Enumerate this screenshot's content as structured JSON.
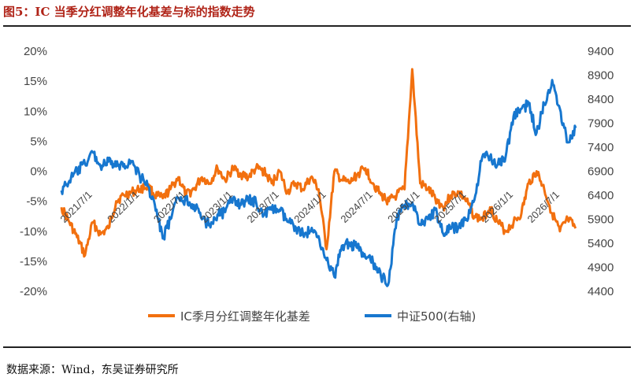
{
  "header": {
    "title": "图5：IC 当季分红调整年化基差与标的指数走势"
  },
  "footer": {
    "source": "数据来源：Wind，东吴证券研究所"
  },
  "colors": {
    "basis": "#f2700f",
    "index": "#1777cf",
    "title": "#b02418"
  },
  "chart_data": {
    "type": "line",
    "title": "",
    "xlabel": "",
    "ylabel": "",
    "y_left": {
      "min": -0.2,
      "max": 0.2,
      "ticks": [
        "20%",
        "15%",
        "10%",
        "5%",
        "0%",
        "-5%",
        "-10%",
        "-15%",
        "-20%"
      ]
    },
    "y_right": {
      "min": 4400,
      "max": 9400,
      "ticks": [
        "9400",
        "8900",
        "8400",
        "7900",
        "7400",
        "6900",
        "6400",
        "5900",
        "5400",
        "4900",
        "4400"
      ]
    },
    "x_ticks": [
      "2021/7/1",
      "2022/1/1",
      "2022/7/1",
      "2023/1/1",
      "2023/7/1",
      "2024/1/1",
      "2024/7/1",
      "2025/1/1",
      "2025/7/1",
      "2026/1/1",
      "2026/7/1"
    ],
    "x_range": [
      "2021/3/1",
      "2026/9/1"
    ],
    "legend_position": "bottom",
    "grid": false,
    "series": [
      {
        "name": "IC季月分红调整年化基差",
        "axis": "left",
        "color": "#f2700f",
        "points": [
          [
            "2021/3/1",
            -0.06
          ],
          [
            "2021/4/1",
            -0.085
          ],
          [
            "2021/5/1",
            -0.11
          ],
          [
            "2021/6/1",
            -0.14
          ],
          [
            "2021/7/1",
            -0.085
          ],
          [
            "2021/8/1",
            -0.105
          ],
          [
            "2021/9/1",
            -0.095
          ],
          [
            "2021/10/1",
            -0.05
          ],
          [
            "2021/11/1",
            -0.04
          ],
          [
            "2021/12/1",
            -0.035
          ],
          [
            "2022/1/1",
            -0.03
          ],
          [
            "2022/2/1",
            -0.025
          ],
          [
            "2022/3/1",
            -0.04
          ],
          [
            "2022/4/1",
            -0.045
          ],
          [
            "2022/5/1",
            -0.03
          ],
          [
            "2022/6/1",
            -0.01
          ],
          [
            "2022/7/1",
            -0.04
          ],
          [
            "2022/8/1",
            -0.03
          ],
          [
            "2022/9/1",
            -0.01
          ],
          [
            "2022/10/1",
            -0.02
          ],
          [
            "2022/11/1",
            0.005
          ],
          [
            "2022/12/1",
            -0.015
          ],
          [
            "2023/1/1",
            0.005
          ],
          [
            "2023/2/1",
            -0.005
          ],
          [
            "2023/3/1",
            -0.01
          ],
          [
            "2023/4/1",
            0.005
          ],
          [
            "2023/5/1",
            0.0
          ],
          [
            "2023/6/1",
            -0.02
          ],
          [
            "2023/7/1",
            0.0
          ],
          [
            "2023/8/1",
            -0.035
          ],
          [
            "2023/9/1",
            -0.02
          ],
          [
            "2023/10/1",
            -0.03
          ],
          [
            "2023/11/1",
            -0.01
          ],
          [
            "2023/12/1",
            -0.03
          ],
          [
            "2024/1/1",
            -0.13
          ],
          [
            "2024/2/1",
            0.0
          ],
          [
            "2024/3/1",
            -0.015
          ],
          [
            "2024/4/1",
            -0.02
          ],
          [
            "2024/5/1",
            -0.005
          ],
          [
            "2024/6/1",
            0.005
          ],
          [
            "2024/7/1",
            -0.02
          ],
          [
            "2024/8/1",
            -0.04
          ],
          [
            "2024/9/1",
            -0.05
          ],
          [
            "2024/10/1",
            -0.04
          ],
          [
            "2024/11/1",
            -0.03
          ],
          [
            "2024/12/1",
            0.17
          ],
          [
            "2025/1/1",
            -0.02
          ],
          [
            "2025/2/1",
            -0.03
          ],
          [
            "2025/3/1",
            -0.045
          ],
          [
            "2025/4/1",
            -0.06
          ],
          [
            "2025/5/1",
            -0.04
          ],
          [
            "2025/6/1",
            -0.035
          ],
          [
            "2025/7/1",
            -0.05
          ],
          [
            "2025/8/1",
            -0.075
          ],
          [
            "2025/9/1",
            -0.08
          ],
          [
            "2025/10/1",
            -0.06
          ],
          [
            "2025/11/1",
            -0.085
          ],
          [
            "2025/12/1",
            -0.1
          ],
          [
            "2026/1/1",
            -0.085
          ],
          [
            "2026/2/1",
            -0.07
          ],
          [
            "2026/3/1",
            -0.02
          ],
          [
            "2026/4/1",
            0.0
          ],
          [
            "2026/5/1",
            -0.03
          ],
          [
            "2026/6/1",
            -0.07
          ],
          [
            "2026/7/1",
            -0.1
          ],
          [
            "2026/8/1",
            -0.08
          ],
          [
            "2026/9/1",
            -0.095
          ]
        ]
      },
      {
        "name": "中证500(右轴)",
        "axis": "right",
        "color": "#1777cf",
        "points": [
          [
            "2021/3/1",
            6500
          ],
          [
            "2021/4/1",
            6700
          ],
          [
            "2021/5/1",
            6900
          ],
          [
            "2021/6/1",
            7050
          ],
          [
            "2021/7/1",
            7300
          ],
          [
            "2021/8/1",
            7000
          ],
          [
            "2021/9/1",
            7100
          ],
          [
            "2021/10/1",
            7000
          ],
          [
            "2021/11/1",
            7050
          ],
          [
            "2021/12/1",
            7100
          ],
          [
            "2022/1/1",
            6800
          ],
          [
            "2022/2/1",
            6600
          ],
          [
            "2022/3/1",
            6200
          ],
          [
            "2022/4/1",
            5500
          ],
          [
            "2022/5/1",
            5900
          ],
          [
            "2022/6/1",
            6350
          ],
          [
            "2022/7/1",
            6300
          ],
          [
            "2022/8/1",
            6200
          ],
          [
            "2022/9/1",
            5900
          ],
          [
            "2022/10/1",
            5800
          ],
          [
            "2022/11/1",
            6000
          ],
          [
            "2022/12/1",
            6050
          ],
          [
            "2023/1/1",
            6350
          ],
          [
            "2023/2/1",
            6200
          ],
          [
            "2023/3/1",
            6300
          ],
          [
            "2023/4/1",
            6250
          ],
          [
            "2023/5/1",
            6000
          ],
          [
            "2023/6/1",
            6100
          ],
          [
            "2023/7/1",
            6100
          ],
          [
            "2023/8/1",
            5850
          ],
          [
            "2023/9/1",
            5750
          ],
          [
            "2023/10/1",
            5600
          ],
          [
            "2023/11/1",
            5650
          ],
          [
            "2023/12/1",
            5550
          ],
          [
            "2024/1/1",
            5050
          ],
          [
            "2024/2/1",
            4700
          ],
          [
            "2024/3/1",
            5350
          ],
          [
            "2024/4/1",
            5400
          ],
          [
            "2024/5/1",
            5300
          ],
          [
            "2024/6/1",
            5100
          ],
          [
            "2024/7/1",
            5000
          ],
          [
            "2024/8/1",
            4700
          ],
          [
            "2024/9/1",
            4600
          ],
          [
            "2024/10/1",
            5900
          ],
          [
            "2024/11/1",
            6200
          ],
          [
            "2024/12/1",
            6250
          ],
          [
            "2025/1/1",
            5800
          ],
          [
            "2025/2/1",
            5900
          ],
          [
            "2025/3/1",
            6100
          ],
          [
            "2025/4/1",
            5600
          ],
          [
            "2025/5/1",
            5700
          ],
          [
            "2025/6/1",
            5750
          ],
          [
            "2025/7/1",
            5900
          ],
          [
            "2025/8/1",
            6300
          ],
          [
            "2025/9/1",
            7200
          ],
          [
            "2025/10/1",
            7200
          ],
          [
            "2025/11/1",
            7050
          ],
          [
            "2025/12/1",
            7200
          ],
          [
            "2026/1/1",
            8050
          ],
          [
            "2026/2/1",
            8200
          ],
          [
            "2026/3/1",
            8300
          ],
          [
            "2026/4/1",
            7700
          ],
          [
            "2026/5/1",
            8300
          ],
          [
            "2026/6/1",
            8800
          ],
          [
            "2026/7/1",
            8200
          ],
          [
            "2026/8/1",
            7500
          ],
          [
            "2026/9/1",
            7800
          ]
        ]
      }
    ]
  }
}
